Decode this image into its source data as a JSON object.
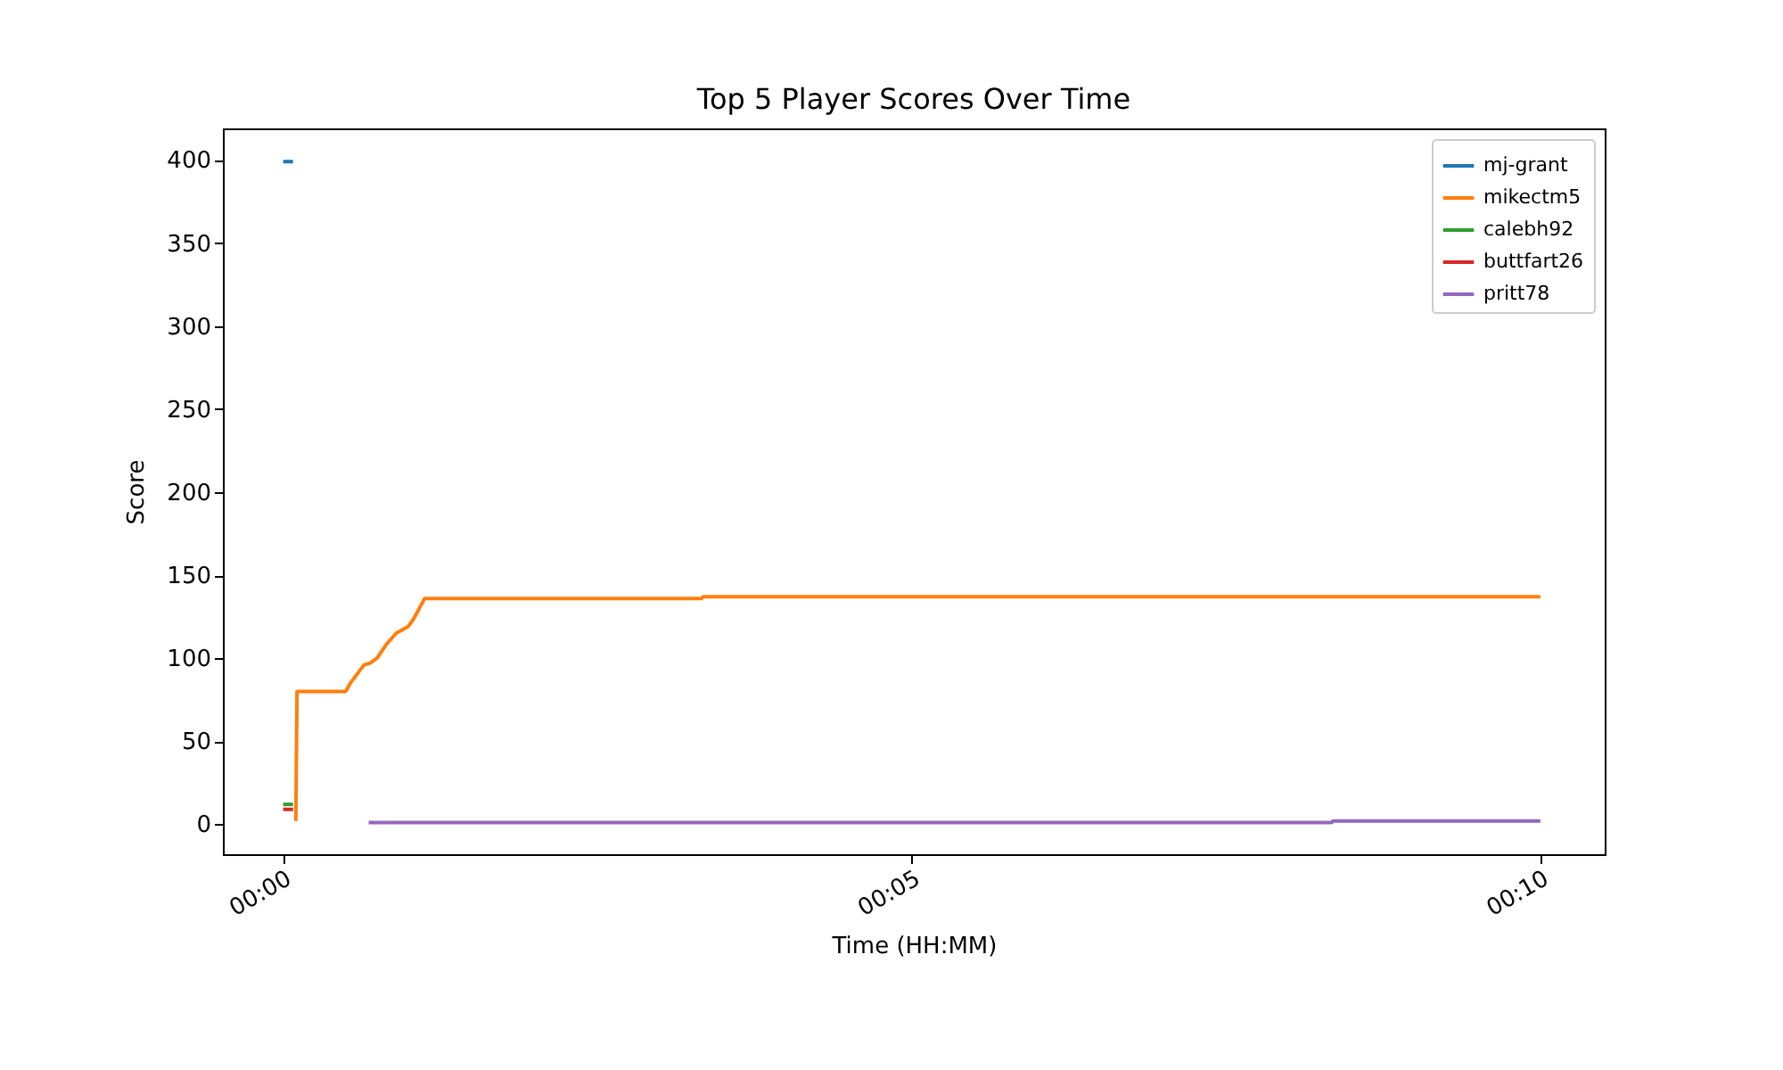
{
  "chart_data": {
    "type": "line",
    "title": "Top 5 Player Scores Over Time",
    "xlabel": "Time (HH:MM)",
    "ylabel": "Score",
    "xlim": [
      -0.008,
      0.1752
    ],
    "xticks": [
      {
        "value": 0,
        "label": "00:00"
      },
      {
        "value": 0.083333,
        "label": "00:05"
      },
      {
        "value": 0.166667,
        "label": "00:10"
      }
    ],
    "ylim": [
      -18,
      419
    ],
    "yticks": [
      0,
      50,
      100,
      150,
      200,
      250,
      300,
      350,
      400
    ],
    "grid": false,
    "legend": "top right",
    "series": [
      {
        "name": "mj-grant",
        "color": "#1f77b4",
        "x": [
          0,
          0.0013
        ],
        "values": [
          399,
          399
        ]
      },
      {
        "name": "mikectm5",
        "color": "#ff7f0e",
        "x": [
          0.00167,
          0.00183,
          0.00827,
          0.0089,
          0.01072,
          0.0115,
          0.01243,
          0.01362,
          0.01497,
          0.01655,
          0.01733,
          0.01875,
          0.0555,
          0.05567,
          0.16667
        ],
        "values": [
          2,
          80,
          80,
          85,
          96,
          97,
          100,
          108,
          115,
          119,
          124,
          136,
          136,
          137,
          137
        ]
      },
      {
        "name": "calebh92",
        "color": "#2ca02c",
        "x": [
          0,
          0.0013
        ],
        "values": [
          12,
          12
        ]
      },
      {
        "name": "buttfart26",
        "color": "#d62728",
        "x": [
          0,
          0.0013
        ],
        "values": [
          9,
          9
        ]
      },
      {
        "name": "pritt78",
        "color": "#9467bd",
        "x": [
          0.01133,
          0.139,
          0.13917,
          0.16667
        ],
        "values": [
          1,
          1,
          2,
          2
        ]
      }
    ]
  }
}
